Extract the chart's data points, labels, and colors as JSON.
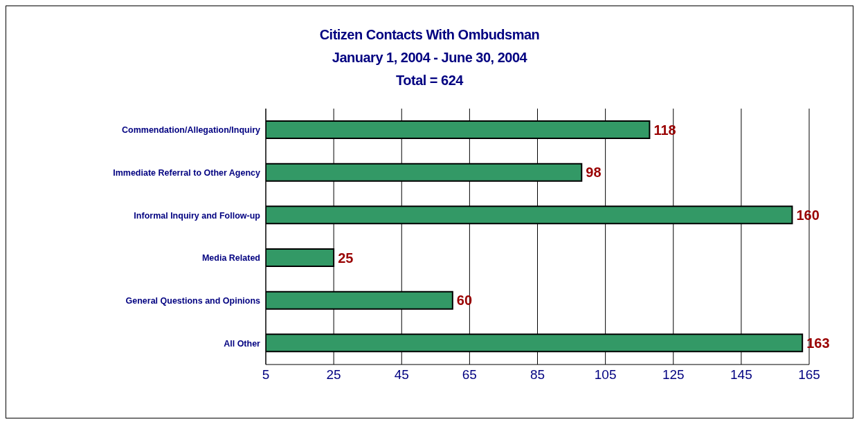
{
  "chart_data": {
    "type": "bar",
    "orientation": "horizontal",
    "title": "Citizen Contacts With Ombudsman",
    "subtitle": "January 1, 2004 - June 30, 2004\nTotal = 624",
    "categories": [
      "Commendation/Allegation/Inquiry",
      "Immediate Referral to Other Agency",
      "Informal Inquiry and Follow-up",
      "Media Related",
      "General Questions and Opinions",
      "All Other"
    ],
    "values": [
      118,
      98,
      160,
      25,
      60,
      163
    ],
    "color": "#339966",
    "xlim": [
      5,
      165
    ],
    "xticks": [
      5,
      25,
      45,
      65,
      85,
      105,
      125,
      145,
      165
    ],
    "grid": "x",
    "data_labels": true
  }
}
